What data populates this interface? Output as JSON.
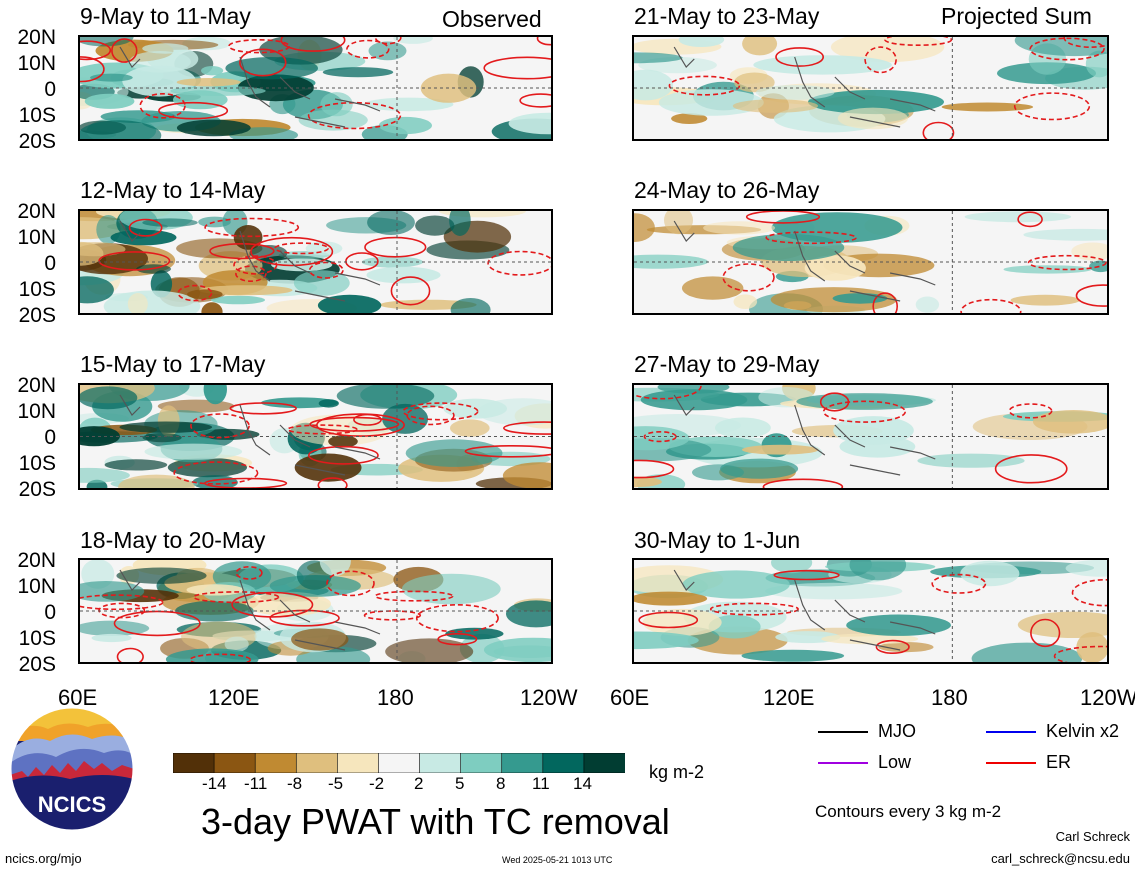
{
  "headers": {
    "observed": "Observed",
    "projected": "Projected Sum"
  },
  "lat_labels": [
    "20N",
    "10N",
    "0",
    "10S",
    "20S"
  ],
  "lon_labels": [
    "60E",
    "120E",
    "180",
    "120W"
  ],
  "panels": [
    {
      "title": "9-May to 11-May"
    },
    {
      "title": "21-May to 23-May"
    },
    {
      "title": "12-May to 14-May"
    },
    {
      "title": "24-May to 26-May"
    },
    {
      "title": "15-May to 17-May"
    },
    {
      "title": "27-May to 29-May"
    },
    {
      "title": "18-May to 20-May"
    },
    {
      "title": "30-May to 1-Jun"
    }
  ],
  "colorbar": {
    "labels": [
      "-14",
      "-11",
      "-8",
      "-5",
      "-2",
      "2",
      "5",
      "8",
      "11",
      "14"
    ],
    "units": "kg m-2",
    "colors": [
      "#523008",
      "#8b5612",
      "#c08a32",
      "#dfbf7e",
      "#f6e6bd",
      "#f5f5f5",
      "#c8eae4",
      "#7ecdc0",
      "#359a8f",
      "#02675e",
      "#013d32"
    ]
  },
  "legend": {
    "items": [
      {
        "label": "MJO",
        "color": "#000000"
      },
      {
        "label": "Kelvin x2",
        "color": "#0000ee"
      },
      {
        "label": "Low",
        "color": "#a000e0"
      },
      {
        "label": "ER",
        "color": "#ee0000"
      }
    ],
    "contour_note": "Contours every 3 kg m-2"
  },
  "title": "3-day PWAT with TC removal",
  "logo_text": "NCICS",
  "footer": {
    "url": "ncics.org/mjo",
    "timestamp": "Wed 2025-05-21 1013 UTC",
    "author": "Carl Schreck",
    "email": "carl_schreck@ncsu.edu"
  }
}
